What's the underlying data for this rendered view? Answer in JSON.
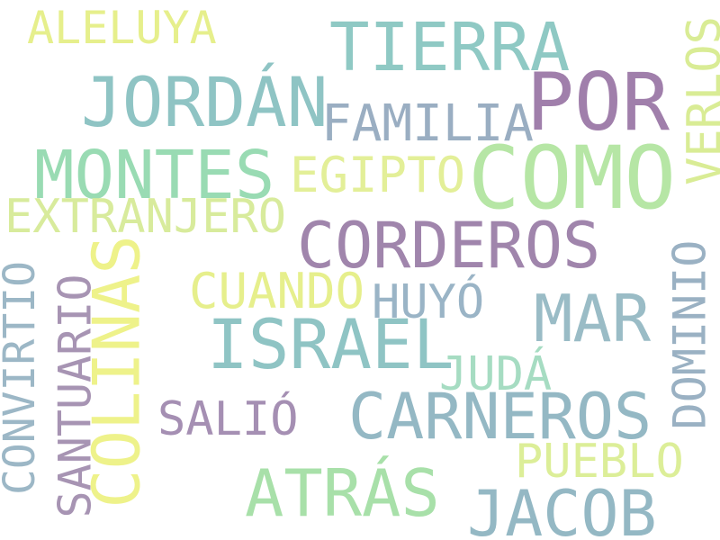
{
  "words": [
    {
      "text": "ALELUYA",
      "color": "#e6ef8c"
    },
    {
      "text": "TIERRA",
      "color": "#8fc9c4"
    },
    {
      "text": "POR",
      "color": "#a07fab"
    },
    {
      "text": "JORDÁN",
      "color": "#8fc4c4"
    },
    {
      "text": "FAMILIA",
      "color": "#9aaec2"
    },
    {
      "text": "VERLOS",
      "color": "#d9ec95"
    },
    {
      "text": "MONTES",
      "color": "#99dbb3"
    },
    {
      "text": "EGIPTO",
      "color": "#e3ef98"
    },
    {
      "text": "COMO",
      "color": "#b6e6a5"
    },
    {
      "text": "EXTRANJERO",
      "color": "#d8eb9c"
    },
    {
      "text": "CORDEROS",
      "color": "#a085ac"
    },
    {
      "text": "COLINAS",
      "color": "#eef28a"
    },
    {
      "text": "CONVIRTIÓ",
      "color": "#9cb7c6"
    },
    {
      "text": "SANTUARIO",
      "color": "#a794b3"
    },
    {
      "text": "CUANDO",
      "color": "#e6ef8c"
    },
    {
      "text": "HUYÓ",
      "color": "#9ab4c6"
    },
    {
      "text": "MAR",
      "color": "#9abcc6"
    },
    {
      "text": "DOMINIO",
      "color": "#9ab1c3"
    },
    {
      "text": "ISRAEL",
      "color": "#8fc4c4"
    },
    {
      "text": "JUDÁ",
      "color": "#a6dcc2"
    },
    {
      "text": "SALIÓ",
      "color": "#a58fb3"
    },
    {
      "text": "CARNEROS",
      "color": "#94b8c4"
    },
    {
      "text": "PUEBLO",
      "color": "#dcee98"
    },
    {
      "text": "ATRÁS",
      "color": "#a8e0a9"
    },
    {
      "text": "JACOB",
      "color": "#94b8c4"
    }
  ]
}
